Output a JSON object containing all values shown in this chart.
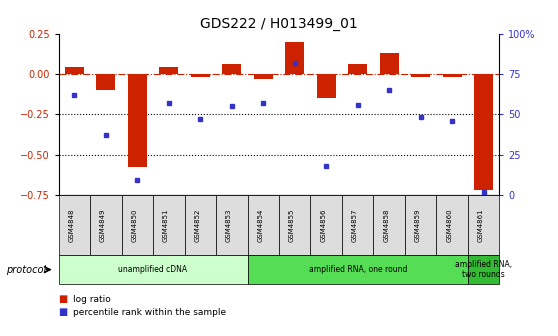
{
  "title": "GDS222 / H013499_01",
  "samples": [
    "GSM4848",
    "GSM4849",
    "GSM4850",
    "GSM4851",
    "GSM4852",
    "GSM4853",
    "GSM4854",
    "GSM4855",
    "GSM4856",
    "GSM4857",
    "GSM4858",
    "GSM4859",
    "GSM4860",
    "GSM4861"
  ],
  "log_ratio": [
    0.04,
    -0.1,
    -0.58,
    0.04,
    -0.02,
    0.06,
    -0.03,
    0.2,
    -0.15,
    0.06,
    0.13,
    -0.02,
    -0.02,
    -0.72
  ],
  "percentile_rank": [
    62,
    37,
    9,
    57,
    47,
    55,
    57,
    82,
    18,
    56,
    65,
    48,
    46,
    2
  ],
  "ylim_left": [
    -0.75,
    0.25
  ],
  "ylim_right": [
    0,
    100
  ],
  "yticks_left": [
    -0.75,
    -0.5,
    -0.25,
    0.0,
    0.25
  ],
  "yticks_right": [
    0,
    25,
    50,
    75,
    100
  ],
  "ytick_labels_right": [
    "0",
    "25",
    "50",
    "75",
    "100%"
  ],
  "bar_color": "#cc2200",
  "point_color": "#3333cc",
  "sample_label_bg": "#dddddd",
  "protocol_groups": [
    {
      "label": "unamplified cDNA",
      "start": 0,
      "end": 5,
      "color": "#ccffcc"
    },
    {
      "label": "amplified RNA, one round",
      "start": 6,
      "end": 12,
      "color": "#55dd55"
    },
    {
      "label": "amplified RNA,\ntwo rounds",
      "start": 13,
      "end": 13,
      "color": "#33bb33"
    }
  ],
  "legend_items": [
    {
      "label": "log ratio",
      "color": "#cc2200"
    },
    {
      "label": "percentile rank within the sample",
      "color": "#3333cc"
    }
  ],
  "dotted_lines": [
    -0.25,
    -0.5
  ],
  "background_color": "#ffffff",
  "title_fontsize": 10,
  "axis_fontsize": 7,
  "bar_width": 0.6
}
